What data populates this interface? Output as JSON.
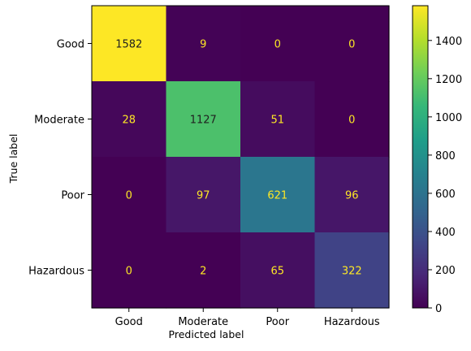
{
  "chart_data": {
    "type": "heatmap",
    "title": "",
    "xlabel": "Predicted label",
    "ylabel": "True label",
    "x_categories": [
      "Good",
      "Moderate",
      "Poor",
      "Hazardous"
    ],
    "y_categories": [
      "Good",
      "Moderate",
      "Poor",
      "Hazardous"
    ],
    "values": [
      [
        1582,
        9,
        0,
        0
      ],
      [
        28,
        1127,
        51,
        0
      ],
      [
        0,
        97,
        621,
        96
      ],
      [
        0,
        2,
        65,
        322
      ]
    ],
    "colormap": "viridis",
    "value_range": [
      0,
      1582
    ],
    "colorbar_ticks": [
      0,
      200,
      400,
      600,
      800,
      1000,
      1200,
      1400
    ],
    "text_colors": {
      "on_dark": "#fde725",
      "on_light": "#1f1f1f"
    }
  }
}
